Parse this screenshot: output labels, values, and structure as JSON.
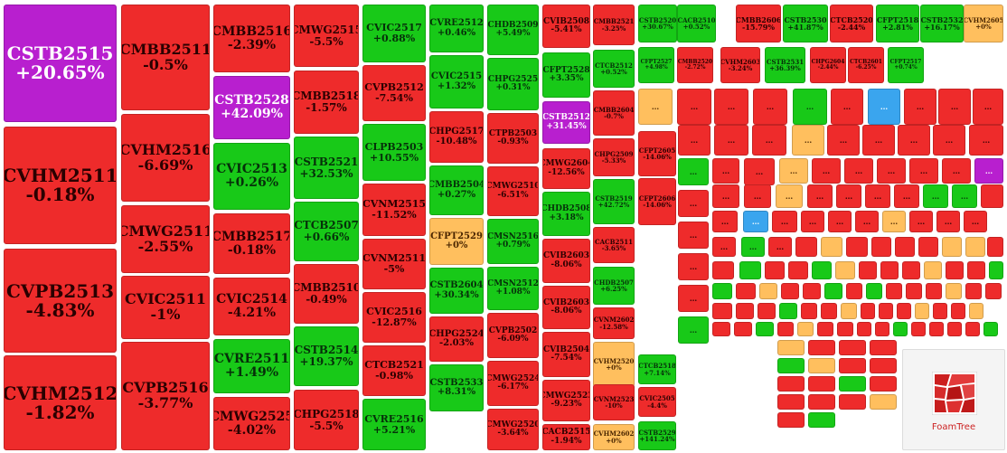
{
  "palette": {
    "up": "#18c918",
    "down": "#ee2b2b",
    "flat": "#ffbf5e",
    "ceiling": "#b81fcf",
    "floor": "#3aa5ee"
  },
  "overflow_label": "...",
  "watermark": {
    "text": "FoamTree",
    "icon": "foamtree-logo-icon"
  },
  "tiles": [
    {
      "name": "CSTB2515",
      "change": "+20.65%",
      "status": "ceiling"
    },
    {
      "name": "CVHM2511",
      "change": "-0.18%",
      "status": "down"
    },
    {
      "name": "CVPB2513",
      "change": "-4.83%",
      "status": "down"
    },
    {
      "name": "CVHM2512",
      "change": "-1.82%",
      "status": "down"
    },
    {
      "name": "CMBB2511",
      "change": "-0.5%",
      "status": "down"
    },
    {
      "name": "CVHM2516",
      "change": "-6.69%",
      "status": "down"
    },
    {
      "name": "CMWG2511",
      "change": "-2.55%",
      "status": "down"
    },
    {
      "name": "CVIC2511",
      "change": "-1%",
      "status": "down"
    },
    {
      "name": "CVPB2516",
      "change": "-3.77%",
      "status": "down"
    },
    {
      "name": "CMBB2516",
      "change": "-2.39%",
      "status": "down"
    },
    {
      "name": "CSTB2528",
      "change": "+42.09%",
      "status": "ceiling"
    },
    {
      "name": "CVIC2513",
      "change": "+0.26%",
      "status": "up"
    },
    {
      "name": "CMBB2517",
      "change": "-0.18%",
      "status": "down"
    },
    {
      "name": "CVIC2514",
      "change": "-4.21%",
      "status": "down"
    },
    {
      "name": "CVRE2511",
      "change": "+1.49%",
      "status": "up"
    },
    {
      "name": "CMWG2525",
      "change": "-4.02%",
      "status": "down"
    },
    {
      "name": "CMWG2515",
      "change": "-5.5%",
      "status": "down"
    },
    {
      "name": "CMBB2518",
      "change": "-1.57%",
      "status": "down"
    },
    {
      "name": "CSTB2521",
      "change": "+32.53%",
      "status": "up"
    },
    {
      "name": "CTCB2507",
      "change": "+0.66%",
      "status": "up"
    },
    {
      "name": "CMBB2510",
      "change": "-0.49%",
      "status": "down"
    },
    {
      "name": "CSTB2514",
      "change": "+19.37%",
      "status": "up"
    },
    {
      "name": "CHPG2518",
      "change": "-5.5%",
      "status": "down"
    },
    {
      "name": "CVIC2517",
      "change": "+0.88%",
      "status": "up"
    },
    {
      "name": "CVPB2512",
      "change": "-7.54%",
      "status": "down"
    },
    {
      "name": "CLPB2503",
      "change": "+10.55%",
      "status": "up"
    },
    {
      "name": "CVNM2515",
      "change": "-11.52%",
      "status": "down"
    },
    {
      "name": "CVNM2511",
      "change": "-5%",
      "status": "down"
    },
    {
      "name": "CVIC2516",
      "change": "-12.87%",
      "status": "down"
    },
    {
      "name": "CTCB2521",
      "change": "-0.98%",
      "status": "down"
    },
    {
      "name": "CVRE2516",
      "change": "+5.21%",
      "status": "up"
    },
    {
      "name": "CVRE2512",
      "change": "+0.46%",
      "status": "up"
    },
    {
      "name": "CVIC2515",
      "change": "+1.32%",
      "status": "up"
    },
    {
      "name": "CHPG2517",
      "change": "-10.48%",
      "status": "down"
    },
    {
      "name": "CMBB2504",
      "change": "+0.27%",
      "status": "up"
    },
    {
      "name": "CFPT2529",
      "change": "+0%",
      "status": "flat"
    },
    {
      "name": "CSTB2604",
      "change": "+30.34%",
      "status": "up"
    },
    {
      "name": "CHPG2524",
      "change": "-2.03%",
      "status": "down"
    },
    {
      "name": "CSTB2533",
      "change": "+8.31%",
      "status": "up"
    },
    {
      "name": "CHDB2509",
      "change": "+5.49%",
      "status": "up"
    },
    {
      "name": "CHPG2525",
      "change": "+0.31%",
      "status": "up"
    },
    {
      "name": "CTPB2503",
      "change": "-0.93%",
      "status": "down"
    },
    {
      "name": "CMWG2510",
      "change": "-6.51%",
      "status": "down"
    },
    {
      "name": "CMSN2516",
      "change": "+0.79%",
      "status": "up"
    },
    {
      "name": "CMSN2512",
      "change": "+1.08%",
      "status": "up"
    },
    {
      "name": "CVPB2502",
      "change": "-6.09%",
      "status": "down"
    },
    {
      "name": "CMWG2524",
      "change": "-6.17%",
      "status": "down"
    },
    {
      "name": "CMWG2520",
      "change": "-3.64%",
      "status": "down"
    },
    {
      "name": "CVIB2508",
      "change": "-5.41%",
      "status": "down"
    },
    {
      "name": "CFPT2528",
      "change": "+3.35%",
      "status": "up"
    },
    {
      "name": "CSTB2512",
      "change": "+31.45%",
      "status": "ceiling"
    },
    {
      "name": "CMWG2604",
      "change": "-12.56%",
      "status": "down"
    },
    {
      "name": "CHDB2508",
      "change": "+3.18%",
      "status": "up"
    },
    {
      "name": "CVIB2603",
      "change": "-8.06%",
      "status": "down"
    },
    {
      "name": "CVIB2603",
      "change": "-8.06%",
      "status": "down"
    },
    {
      "name": "CVIB2504",
      "change": "-7.54%",
      "status": "down"
    },
    {
      "name": "CMWG2523",
      "change": "-9.23%",
      "status": "down"
    },
    {
      "name": "CACB2515",
      "change": "-1.94%",
      "status": "down"
    },
    {
      "name": "CMBB2521",
      "change": "-3.25%",
      "status": "down"
    },
    {
      "name": "CTCB2512",
      "change": "+0.52%",
      "status": "up"
    },
    {
      "name": "CMBB2604",
      "change": "-0.7%",
      "status": "down"
    },
    {
      "name": "CHPG2509",
      "change": "-5.33%",
      "status": "down"
    },
    {
      "name": "CSTB2519",
      "change": "+42.72%",
      "status": "up"
    },
    {
      "name": "CACB2511",
      "change": "-3.65%",
      "status": "down"
    },
    {
      "name": "CHDB2507",
      "change": "+6.25%",
      "status": "up"
    },
    {
      "name": "CVNM2602",
      "change": "-12.58%",
      "status": "down"
    },
    {
      "name": "CVHM2520",
      "change": "+0%",
      "status": "flat"
    },
    {
      "name": "CVNM2523",
      "change": "-10%",
      "status": "down"
    },
    {
      "name": "CVHM2602",
      "change": "+0%",
      "status": "flat"
    },
    {
      "name": "CSTB2520",
      "change": "+30.67%",
      "status": "up"
    },
    {
      "name": "CACB2510",
      "change": "+0.52%",
      "status": "up"
    },
    {
      "name": "CMBB2606",
      "change": "-15.79%",
      "status": "down"
    },
    {
      "name": "CSTB2530",
      "change": "+41.87%",
      "status": "up"
    },
    {
      "name": "CTCB2520",
      "change": "-2.44%",
      "status": "down"
    },
    {
      "name": "CFPT2518",
      "change": "+2.81%",
      "status": "up"
    },
    {
      "name": "CSTB2532",
      "change": "+16.17%",
      "status": "up"
    },
    {
      "name": "CVHM2605",
      "change": "+0%",
      "status": "flat"
    },
    {
      "name": "CFPT2527",
      "change": "+4.98%",
      "status": "up"
    },
    {
      "name": "CMBB2520",
      "change": "-2.72%",
      "status": "down"
    },
    {
      "name": "CVHM2603",
      "change": "-3.24%",
      "status": "down"
    },
    {
      "name": "CSTB2531",
      "change": "+36.39%",
      "status": "up"
    },
    {
      "name": "CHPG2604",
      "change": "-2.44%",
      "status": "down"
    },
    {
      "name": "CTCB2601",
      "change": "-6.25%",
      "status": "down"
    },
    {
      "name": "CFPT2517",
      "change": "+0.74%",
      "status": "up"
    },
    {
      "name": "CFPT2605",
      "change": "-14.06%",
      "status": "down"
    },
    {
      "name": "CFPT2606",
      "change": "-14.06%",
      "status": "down"
    },
    {
      "name": "CTCB2518",
      "change": "+7.14%",
      "status": "up"
    },
    {
      "name": "CVIC2505",
      "change": "-4.4%",
      "status": "down"
    },
    {
      "name": "CSTB2529",
      "change": "+141.24%",
      "status": "up"
    }
  ],
  "small_tiles": [
    {
      "status": "flat"
    },
    {
      "status": "down"
    },
    {
      "status": "down"
    },
    {
      "status": "down"
    },
    {
      "status": "up"
    },
    {
      "status": "down"
    },
    {
      "status": "floor"
    },
    {
      "status": "down"
    },
    {
      "status": "down"
    },
    {
      "status": "down"
    },
    {
      "status": "down"
    },
    {
      "status": "down"
    },
    {
      "status": "down"
    },
    {
      "status": "flat"
    },
    {
      "status": "down"
    },
    {
      "status": "down"
    },
    {
      "status": "down"
    },
    {
      "status": "down"
    },
    {
      "status": "down"
    },
    {
      "status": "up"
    },
    {
      "status": "down"
    },
    {
      "status": "down"
    },
    {
      "status": "flat"
    },
    {
      "status": "down"
    },
    {
      "status": "down"
    },
    {
      "status": "down"
    },
    {
      "status": "down"
    },
    {
      "status": "down"
    },
    {
      "status": "ceiling"
    },
    {
      "status": "down"
    },
    {
      "status": "down"
    },
    {
      "status": "down"
    },
    {
      "status": "flat"
    },
    {
      "status": "down"
    },
    {
      "status": "down"
    },
    {
      "status": "down"
    },
    {
      "status": "down"
    },
    {
      "status": "up"
    },
    {
      "status": "up"
    },
    {
      "status": "down"
    },
    {
      "status": "down"
    },
    {
      "status": "down"
    },
    {
      "status": "floor"
    },
    {
      "status": "down"
    },
    {
      "status": "down"
    },
    {
      "status": "down"
    },
    {
      "status": "down"
    },
    {
      "status": "flat"
    },
    {
      "status": "down"
    },
    {
      "status": "down"
    },
    {
      "status": "down"
    },
    {
      "status": "down"
    },
    {
      "status": "up"
    },
    {
      "status": "down"
    },
    {
      "status": "down"
    },
    {
      "status": "flat"
    },
    {
      "status": "down"
    },
    {
      "status": "down"
    },
    {
      "status": "down"
    },
    {
      "status": "down"
    },
    {
      "status": "flat"
    },
    {
      "status": "flat"
    },
    {
      "status": "down"
    },
    {
      "status": "down"
    },
    {
      "status": "down"
    },
    {
      "status": "up"
    },
    {
      "status": "down"
    },
    {
      "status": "down"
    },
    {
      "status": "up"
    },
    {
      "status": "flat"
    },
    {
      "status": "down"
    },
    {
      "status": "down"
    },
    {
      "status": "down"
    },
    {
      "status": "flat"
    },
    {
      "status": "down"
    },
    {
      "status": "down"
    },
    {
      "status": "up"
    },
    {
      "status": "down"
    },
    {
      "status": "up"
    },
    {
      "status": "down"
    },
    {
      "status": "flat"
    },
    {
      "status": "down"
    },
    {
      "status": "down"
    },
    {
      "status": "up"
    },
    {
      "status": "down"
    },
    {
      "status": "up"
    },
    {
      "status": "down"
    },
    {
      "status": "down"
    },
    {
      "status": "down"
    },
    {
      "status": "flat"
    },
    {
      "status": "down"
    },
    {
      "status": "down"
    },
    {
      "status": "up"
    },
    {
      "status": "down"
    },
    {
      "status": "down"
    },
    {
      "status": "down"
    },
    {
      "status": "up"
    },
    {
      "status": "down"
    },
    {
      "status": "down"
    },
    {
      "status": "flat"
    },
    {
      "status": "down"
    },
    {
      "status": "down"
    },
    {
      "status": "down"
    },
    {
      "status": "flat"
    },
    {
      "status": "down"
    },
    {
      "status": "down"
    },
    {
      "status": "flat"
    },
    {
      "status": "down"
    },
    {
      "status": "down"
    },
    {
      "status": "up"
    },
    {
      "status": "down"
    },
    {
      "status": "flat"
    },
    {
      "status": "down"
    },
    {
      "status": "down"
    },
    {
      "status": "down"
    },
    {
      "status": "down"
    },
    {
      "status": "up"
    },
    {
      "status": "down"
    },
    {
      "status": "down"
    },
    {
      "status": "down"
    },
    {
      "status": "down"
    },
    {
      "status": "up"
    },
    {
      "status": "flat"
    },
    {
      "status": "down"
    },
    {
      "status": "down"
    },
    {
      "status": "down"
    },
    {
      "status": "up"
    },
    {
      "status": "flat"
    },
    {
      "status": "down"
    },
    {
      "status": "down"
    },
    {
      "status": "down"
    },
    {
      "status": "down"
    },
    {
      "status": "up"
    },
    {
      "status": "down"
    },
    {
      "status": "down"
    },
    {
      "status": "down"
    },
    {
      "status": "down"
    },
    {
      "status": "flat"
    },
    {
      "status": "down"
    },
    {
      "status": "up"
    }
  ]
}
